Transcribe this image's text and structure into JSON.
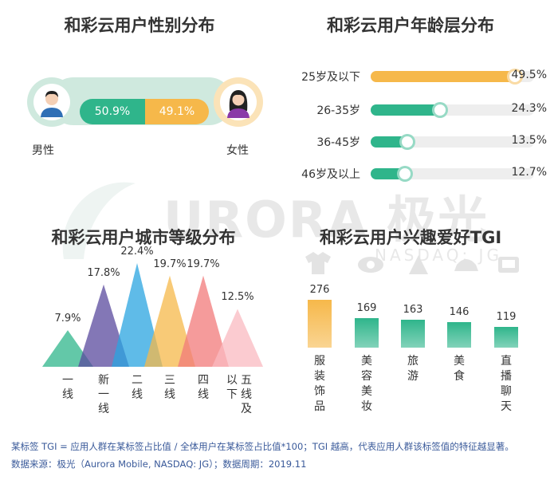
{
  "gender": {
    "title": "和彩云用户性别分布",
    "male_label": "男性",
    "female_label": "女性",
    "male_value": "50.9%",
    "female_value": "49.1%",
    "male_color": "#2fb58b",
    "female_color": "#f6b84a"
  },
  "age": {
    "title": "和彩云用户年龄层分布",
    "rows": [
      {
        "label": "25岁及以下",
        "value": "49.5%",
        "pct": 49.5,
        "color": "#f6b84a"
      },
      {
        "label": "26-35岁",
        "value": "24.3%",
        "pct": 24.3,
        "color": "#2fb58b"
      },
      {
        "label": "36-45岁",
        "value": "13.5%",
        "pct": 13.5,
        "color": "#2fb58b"
      },
      {
        "label": "46岁及以上",
        "value": "12.7%",
        "pct": 12.7,
        "color": "#2fb58b"
      }
    ]
  },
  "city": {
    "title": "和彩云用户城市等级分布",
    "items": [
      {
        "label": "一线",
        "value": "7.9%",
        "pct": 7.9,
        "color": "#2fb58b"
      },
      {
        "label": "新一线",
        "value": "17.8%",
        "pct": 17.8,
        "color": "#5a4a9e"
      },
      {
        "label": "二线",
        "value": "22.4%",
        "pct": 22.4,
        "color": "#2aa4e0"
      },
      {
        "label": "三线",
        "value": "19.7%",
        "pct": 19.7,
        "color": "#f6b84a"
      },
      {
        "label": "四线",
        "value": "19.7%",
        "pct": 19.7,
        "color": "#f27a7a"
      },
      {
        "label": "五线及以下",
        "value": "12.5%",
        "pct": 12.5,
        "color": "#f9b9c0"
      }
    ]
  },
  "tgi": {
    "title": "和彩云用户兴趣爱好TGI",
    "items": [
      {
        "label": "服装饰品",
        "value": "276",
        "num": 276,
        "color": "#f6b84a"
      },
      {
        "label": "美容美妆",
        "value": "169",
        "num": 169,
        "color": "#2fb58b"
      },
      {
        "label": "旅游",
        "value": "163",
        "num": 163,
        "color": "#2fb58b"
      },
      {
        "label": "美食",
        "value": "146",
        "num": 146,
        "color": "#2fb58b"
      },
      {
        "label": "直播聊天",
        "value": "119",
        "num": 119,
        "color": "#2fb58b"
      }
    ]
  },
  "watermark": {
    "brand": "URORA 极光",
    "sub": "NASDAQ: JG"
  },
  "notes": {
    "line1": "某标签 TGI = 应用人群在某标签占比值 / 全体用户在某标签占比值*100；TGI 越高，代表应用人群该标签值的特征越显著。",
    "line2": "数据来源：极光（Aurora Mobile, NASDAQ: JG）；数据周期：2019.11"
  },
  "chart_data": [
    {
      "type": "bar",
      "title": "和彩云用户性别分布",
      "categories": [
        "男性",
        "女性"
      ],
      "values": [
        50.9,
        49.1
      ],
      "unit": "%"
    },
    {
      "type": "bar",
      "title": "和彩云用户年龄层分布",
      "categories": [
        "25岁及以下",
        "26-35岁",
        "36-45岁",
        "46岁及以上"
      ],
      "values": [
        49.5,
        24.3,
        13.5,
        12.7
      ],
      "unit": "%"
    },
    {
      "type": "bar",
      "title": "和彩云用户城市等级分布",
      "categories": [
        "一线",
        "新一线",
        "二线",
        "三线",
        "四线",
        "五线及以下"
      ],
      "values": [
        7.9,
        17.8,
        22.4,
        19.7,
        19.7,
        12.5
      ],
      "unit": "%"
    },
    {
      "type": "bar",
      "title": "和彩云用户兴趣爱好TGI",
      "categories": [
        "服装饰品",
        "美容美妆",
        "旅游",
        "美食",
        "直播聊天"
      ],
      "values": [
        276,
        169,
        163,
        146,
        119
      ]
    }
  ]
}
